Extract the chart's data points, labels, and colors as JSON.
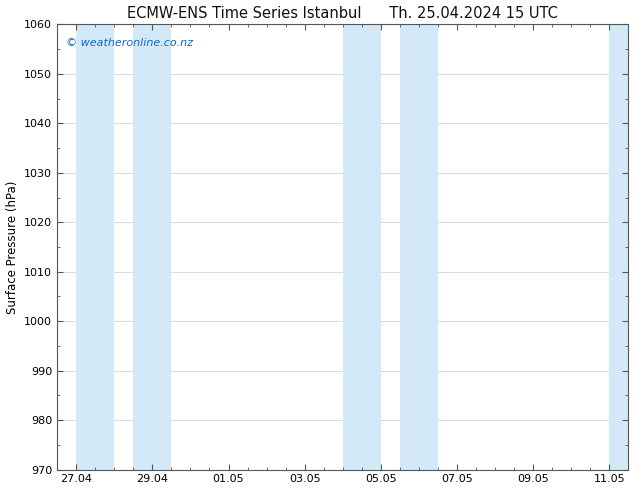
{
  "title_left": "ECMW-ENS Time Series Istanbul",
  "title_right": "Th. 25.04.2024 15 UTC",
  "ylabel": "Surface Pressure (hPa)",
  "ylim": [
    970,
    1060
  ],
  "yticks": [
    970,
    980,
    990,
    1000,
    1010,
    1020,
    1030,
    1040,
    1050,
    1060
  ],
  "xlim": [
    0.0,
    15.0
  ],
  "xtick_positions": [
    0.5,
    2.5,
    4.5,
    6.5,
    8.5,
    10.5,
    12.5,
    14.5
  ],
  "xtick_labels": [
    "27.04",
    "29.04",
    "01.05",
    "03.05",
    "05.05",
    "07.05",
    "09.05",
    "11.05"
  ],
  "background_color": "#ffffff",
  "plot_bg_color": "#ffffff",
  "shaded_bands": [
    {
      "x_start": 0.5,
      "x_end": 1.5
    },
    {
      "x_start": 2.0,
      "x_end": 3.0
    },
    {
      "x_start": 7.5,
      "x_end": 8.5
    },
    {
      "x_start": 9.0,
      "x_end": 10.0
    },
    {
      "x_start": 14.5,
      "x_end": 15.0
    }
  ],
  "band_color": "#d4e9f7",
  "watermark_text": "© weatheronline.co.nz",
  "watermark_color": "#1565c0",
  "title_fontsize": 10.5,
  "tick_fontsize": 8,
  "ylabel_fontsize": 8.5,
  "grid_color": "#c8d8e8",
  "spine_color": "#555555"
}
